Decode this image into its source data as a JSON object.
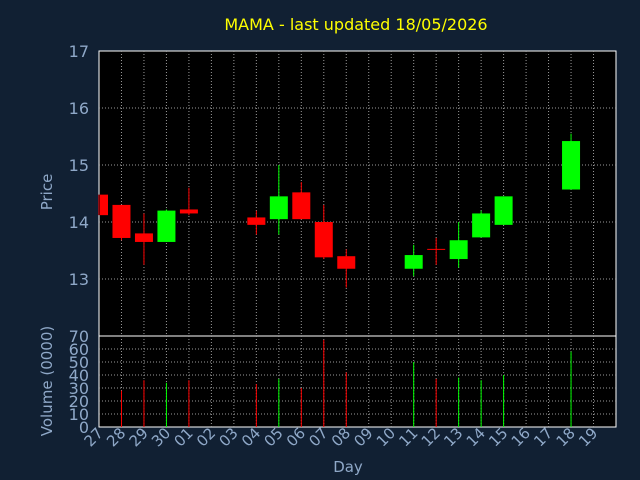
{
  "chart_data": {
    "type": "candlestick",
    "title": "MAMA - last updated 18/05/2026",
    "xlabel": "Day",
    "price_panel": {
      "ylabel": "Price",
      "ylim": [
        12.0,
        17.0
      ],
      "yticks": [
        "13",
        "14",
        "15",
        "16",
        "17"
      ],
      "grid": true
    },
    "volume_panel": {
      "ylabel": "Volume (0000)",
      "ylim": [
        0,
        70
      ],
      "yticks": [
        "0",
        "10",
        "20",
        "30",
        "40",
        "50",
        "60",
        "70"
      ],
      "grid": true
    },
    "x_tick_labels": [
      "27",
      "28",
      "29",
      "30",
      "01",
      "02",
      "03",
      "04",
      "05",
      "06",
      "07",
      "08",
      "09",
      "10",
      "11",
      "12",
      "13",
      "14",
      "15",
      "16",
      "17",
      "18",
      "19"
    ],
    "candles": [
      {
        "day": "27",
        "open": 14.48,
        "high": 14.48,
        "low": 14.12,
        "close": 14.12,
        "volume": null
      },
      {
        "day": "28",
        "open": 14.3,
        "high": 14.3,
        "low": 13.68,
        "close": 13.72,
        "volume": 28
      },
      {
        "day": "29",
        "open": 13.8,
        "high": 14.15,
        "low": 13.25,
        "close": 13.65,
        "volume": 36
      },
      {
        "day": "30",
        "open": 13.65,
        "high": 14.22,
        "low": 13.65,
        "close": 14.2,
        "volume": 34
      },
      {
        "day": "01",
        "open": 14.22,
        "high": 14.6,
        "low": 14.12,
        "close": 14.15,
        "volume": 36
      },
      {
        "day": "04",
        "open": 14.08,
        "high": 14.2,
        "low": 13.78,
        "close": 13.95,
        "volume": 33
      },
      {
        "day": "05",
        "open": 14.05,
        "high": 15.0,
        "low": 13.78,
        "close": 14.45,
        "volume": 37
      },
      {
        "day": "06",
        "open": 14.52,
        "high": 14.7,
        "low": 14.05,
        "close": 14.05,
        "volume": 30
      },
      {
        "day": "07",
        "open": 14.0,
        "high": 14.3,
        "low": 13.35,
        "close": 13.38,
        "volume": 67
      },
      {
        "day": "08",
        "open": 13.4,
        "high": 13.52,
        "low": 12.85,
        "close": 13.18,
        "volume": 42
      },
      {
        "day": "11",
        "open": 13.18,
        "high": 13.6,
        "low": 13.05,
        "close": 13.42,
        "volume": 50
      },
      {
        "day": "12",
        "open": 13.52,
        "high": 13.72,
        "low": 13.25,
        "close": 13.5,
        "volume": 37
      },
      {
        "day": "13",
        "open": 13.35,
        "high": 14.0,
        "low": 13.2,
        "close": 13.68,
        "volume": 38
      },
      {
        "day": "14",
        "open": 13.73,
        "high": 14.2,
        "low": 13.73,
        "close": 14.15,
        "volume": 36
      },
      {
        "day": "15",
        "open": 13.95,
        "high": 14.45,
        "low": 13.95,
        "close": 14.45,
        "volume": 40
      },
      {
        "day": "18",
        "open": 14.57,
        "high": 15.55,
        "low": 14.57,
        "close": 15.42,
        "volume": 58
      }
    ],
    "colors": {
      "background": "#112033",
      "plot_background": "#000000",
      "up": "#00ff00",
      "down": "#ff0000",
      "title": "#ffff00",
      "axis_text": "#8fa8c8",
      "frame": "#ffffff",
      "grid": "#9a9a9a"
    }
  }
}
